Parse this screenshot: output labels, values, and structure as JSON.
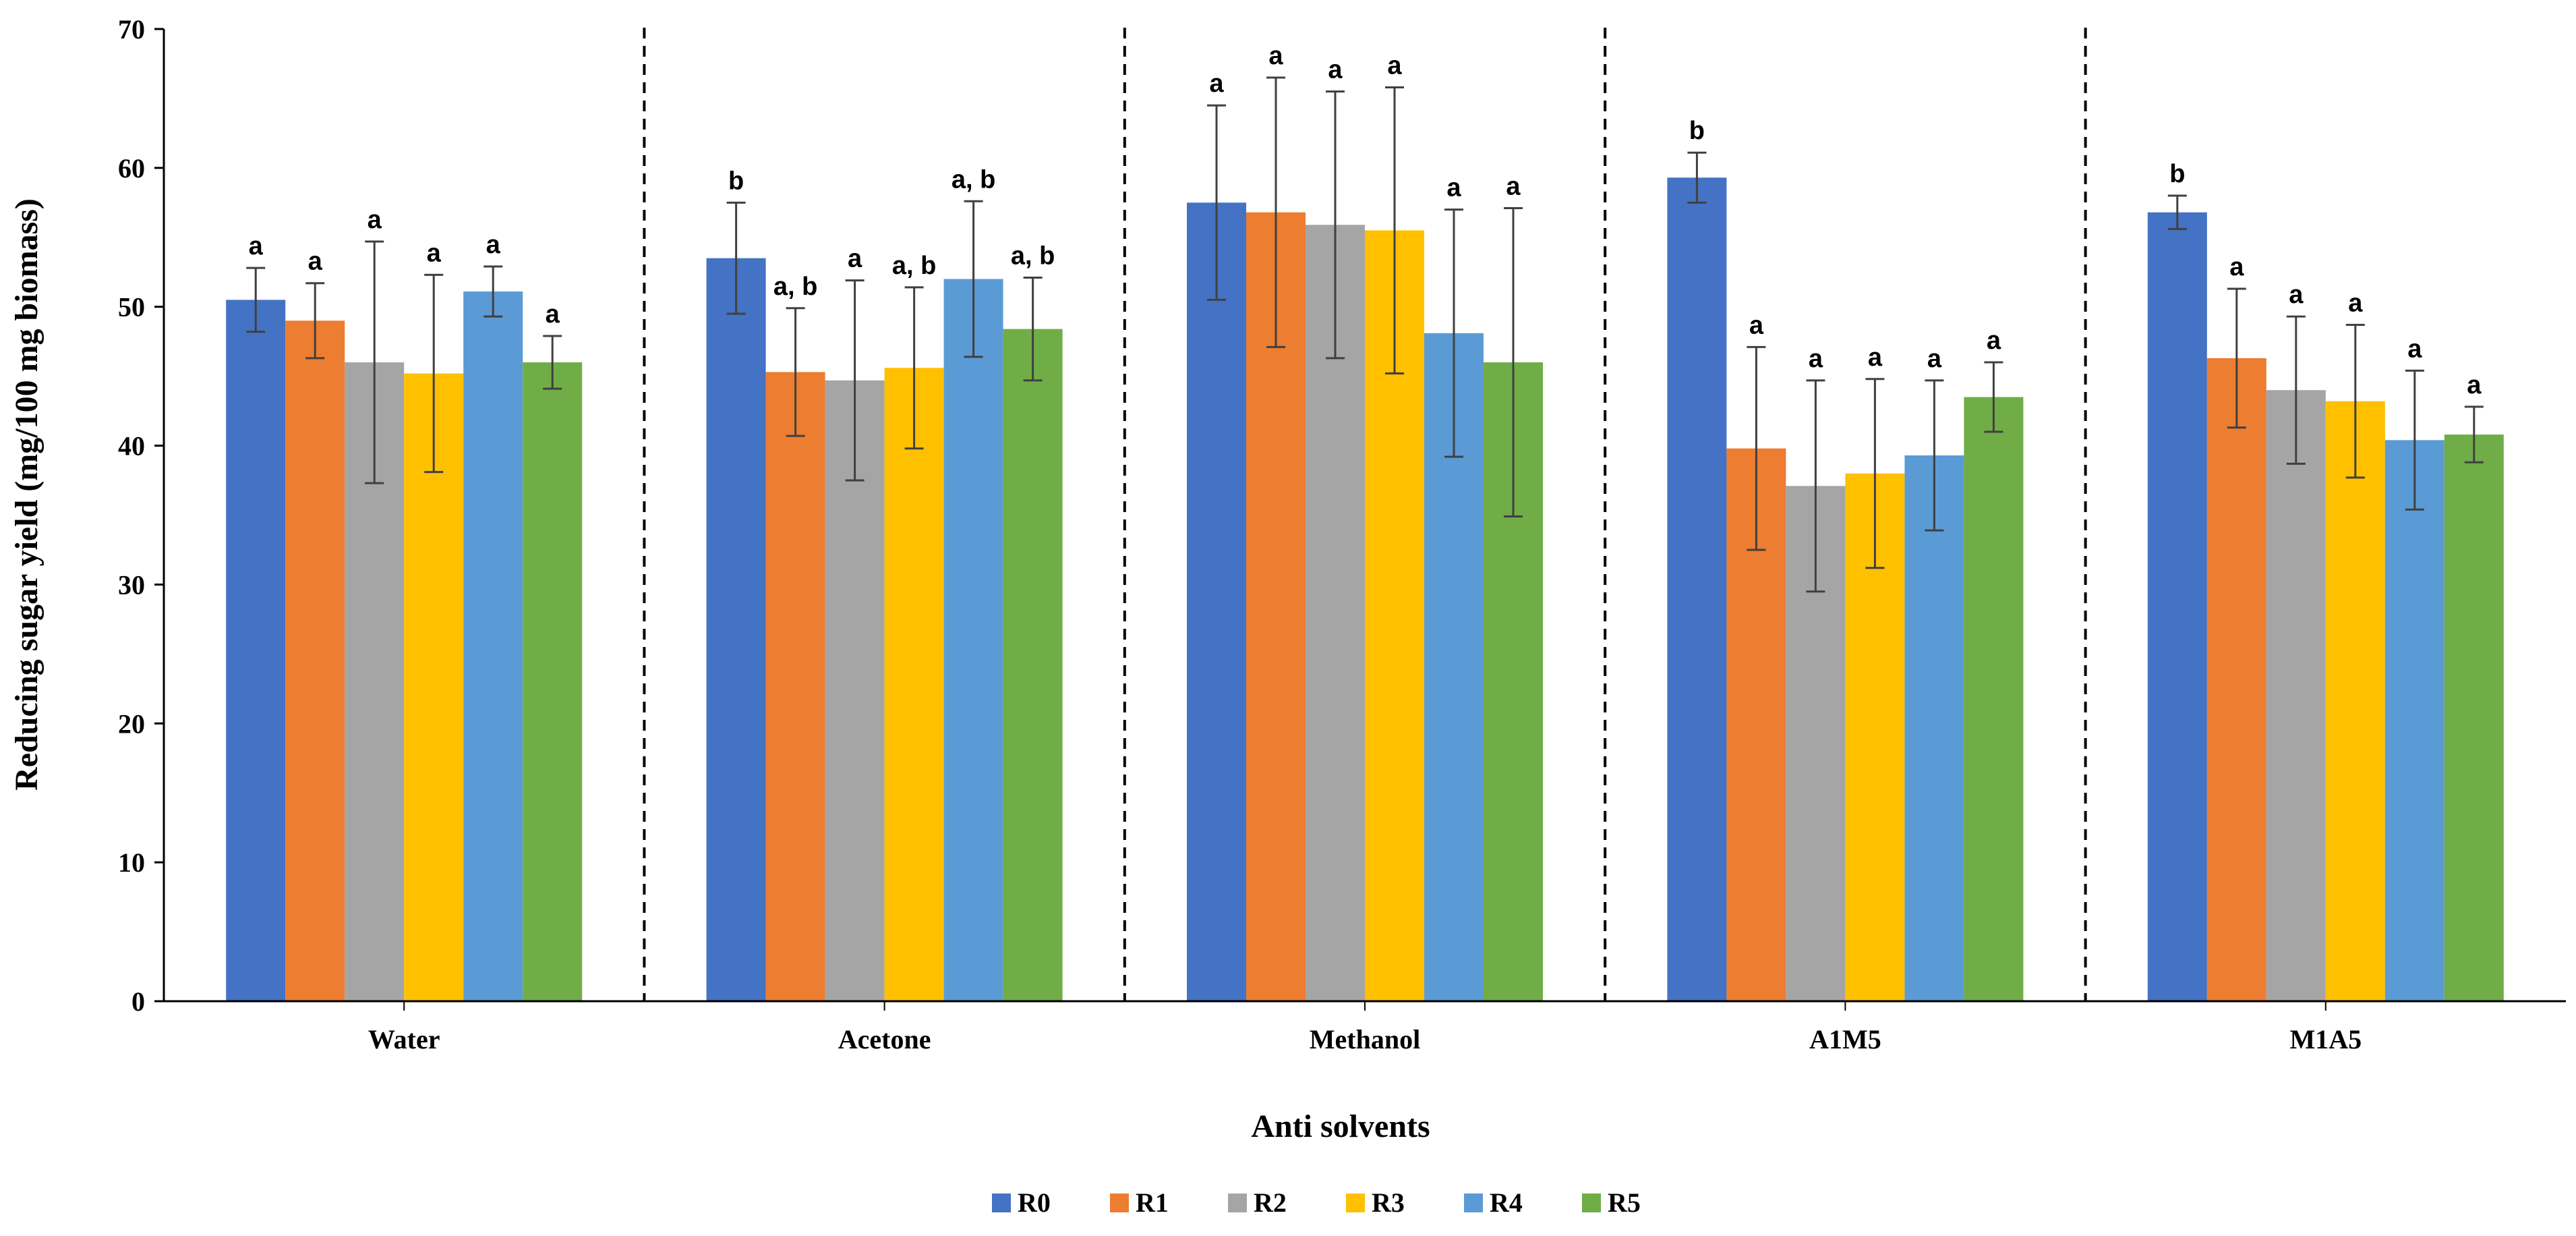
{
  "chart_data": {
    "type": "bar",
    "title": "",
    "xlabel": "Anti solvents",
    "ylabel": "Reducing sugar yield (mg/100 mg biomass)",
    "ylim": [
      0,
      70
    ],
    "yticks": [
      0,
      10,
      20,
      30,
      40,
      50,
      60,
      70
    ],
    "grid": false,
    "legend_position": "bottom",
    "group_separators": "dashed",
    "categories": [
      "Water",
      "Acetone",
      "Methanol",
      "A1M5",
      "M1A5"
    ],
    "series": [
      {
        "name": "R0",
        "color": "#4472C4",
        "values": [
          50.5,
          53.5,
          57.5,
          59.3,
          56.8
        ],
        "errors": [
          2.3,
          4.0,
          7.0,
          1.8,
          1.2
        ],
        "labels": [
          "a",
          "b",
          "a",
          "b",
          "b"
        ]
      },
      {
        "name": "R1",
        "color": "#ED7D31",
        "values": [
          49.0,
          45.3,
          56.8,
          39.8,
          46.3
        ],
        "errors": [
          2.7,
          4.6,
          9.7,
          7.3,
          5.0
        ],
        "labels": [
          "a",
          "a, b",
          "a",
          "a",
          "a"
        ]
      },
      {
        "name": "R2",
        "color": "#A5A5A5",
        "values": [
          46.0,
          44.7,
          55.9,
          37.1,
          44.0
        ],
        "errors": [
          8.7,
          7.2,
          9.6,
          7.6,
          5.3
        ],
        "labels": [
          "a",
          "a",
          "a",
          "a",
          "a"
        ]
      },
      {
        "name": "R3",
        "color": "#FFC000",
        "values": [
          45.2,
          45.6,
          55.5,
          38.0,
          43.2
        ],
        "errors": [
          7.1,
          5.8,
          10.3,
          6.8,
          5.5
        ],
        "labels": [
          "a",
          "a, b",
          "a",
          "a",
          "a"
        ]
      },
      {
        "name": "R4",
        "color": "#5B9BD5",
        "values": [
          51.1,
          52.0,
          48.1,
          39.3,
          40.4
        ],
        "errors": [
          1.8,
          5.6,
          8.9,
          5.4,
          5.0
        ],
        "labels": [
          "a",
          "a, b",
          "a",
          "a",
          "a"
        ]
      },
      {
        "name": "R5",
        "color": "#70AD47",
        "values": [
          46.0,
          48.4,
          46.0,
          43.5,
          40.8
        ],
        "errors": [
          1.9,
          3.7,
          11.1,
          2.5,
          2.0
        ],
        "labels": [
          "a",
          "a, b",
          "a",
          "a",
          "a"
        ]
      }
    ]
  }
}
